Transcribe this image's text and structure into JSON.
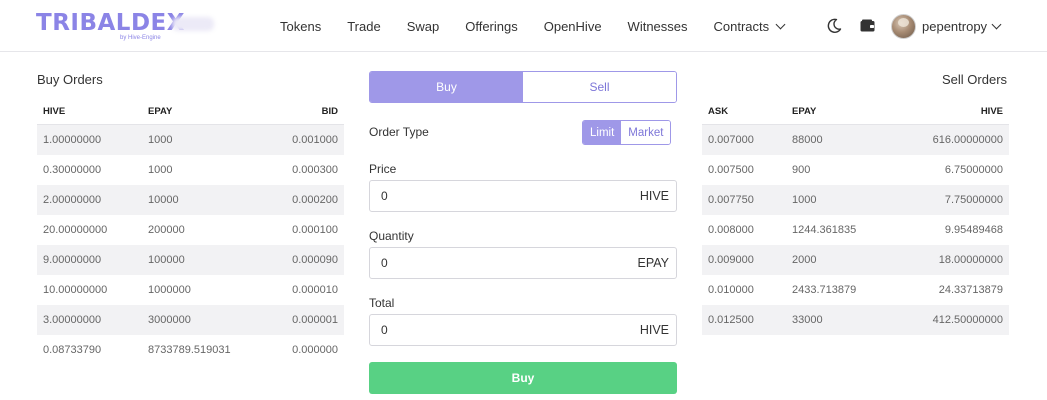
{
  "header": {
    "logo_text": "TRIBALDEX",
    "logo_sub": "by Hive-Engine",
    "nav": [
      "Tokens",
      "Trade",
      "Swap",
      "Offerings",
      "OpenHive",
      "Witnesses",
      "Contracts"
    ],
    "username": "pepentropy"
  },
  "buy_orders": {
    "title": "Buy Orders",
    "columns": [
      "HIVE",
      "EPAY",
      "BID"
    ],
    "rows": [
      [
        "1.00000000",
        "1000",
        "0.001000"
      ],
      [
        "0.30000000",
        "1000",
        "0.000300"
      ],
      [
        "2.00000000",
        "10000",
        "0.000200"
      ],
      [
        "20.00000000",
        "200000",
        "0.000100"
      ],
      [
        "9.00000000",
        "100000",
        "0.000090"
      ],
      [
        "10.00000000",
        "1000000",
        "0.000010"
      ],
      [
        "3.00000000",
        "3000000",
        "0.000001"
      ],
      [
        "0.08733790",
        "8733789.519031",
        "0.000000"
      ]
    ]
  },
  "sell_orders": {
    "title": "Sell Orders",
    "columns": [
      "ASK",
      "EPAY",
      "HIVE"
    ],
    "rows": [
      [
        "0.007000",
        "88000",
        "616.00000000"
      ],
      [
        "0.007500",
        "900",
        "6.75000000"
      ],
      [
        "0.007750",
        "1000",
        "7.75000000"
      ],
      [
        "0.008000",
        "1244.361835",
        "9.95489468"
      ],
      [
        "0.009000",
        "2000",
        "18.00000000"
      ],
      [
        "0.010000",
        "2433.713879",
        "24.33713879"
      ],
      [
        "0.012500",
        "33000",
        "412.50000000"
      ]
    ]
  },
  "form": {
    "tab_buy": "Buy",
    "tab_sell": "Sell",
    "order_type_label": "Order Type",
    "limit": "Limit",
    "market": "Market",
    "price_label": "Price",
    "price_value": "0",
    "price_unit": "HIVE",
    "quantity_label": "Quantity",
    "quantity_value": "0",
    "quantity_unit": "EPAY",
    "total_label": "Total",
    "total_value": "0",
    "total_unit": "HIVE",
    "submit": "Buy"
  },
  "colors": {
    "accent": "#9f98e8",
    "buy_button": "#58d184",
    "logo": "#8b84e6"
  }
}
